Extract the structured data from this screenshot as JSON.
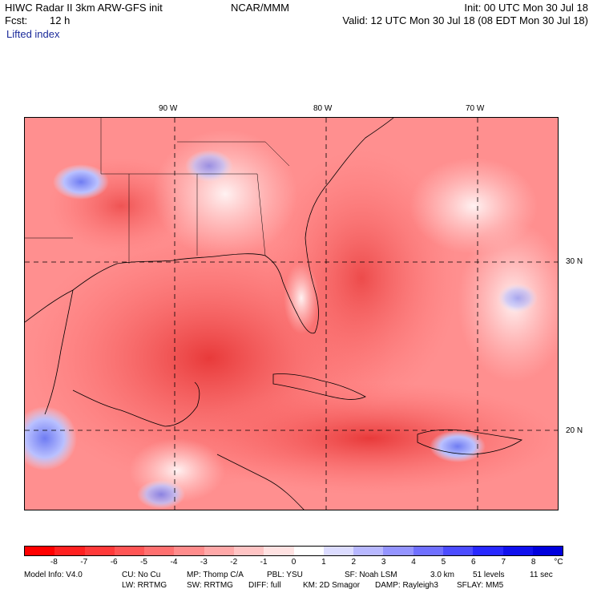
{
  "header": {
    "title": "HIWC Radar II 3km ARW-GFS init",
    "org": "NCAR/MMM",
    "init": "Init: 00 UTC Mon 30 Jul 18",
    "fcst_label": "Fcst:",
    "fcst_value": "12 h",
    "valid": "Valid: 12 UTC Mon 30 Jul 18 (08 EDT Mon 30 Jul 18)",
    "field": "Lifted index"
  },
  "axes": {
    "lon_labels": [
      "90 W",
      "80 W",
      "70 W"
    ],
    "lat_labels": [
      "30 N",
      "20 N"
    ]
  },
  "legend": {
    "unit": "°C",
    "values": [
      "-8",
      "-7",
      "-6",
      "-5",
      "-4",
      "-3",
      "-2",
      "-1",
      "0",
      "1",
      "2",
      "3",
      "4",
      "5",
      "6",
      "7",
      "8"
    ],
    "colors": [
      "#ff0000",
      "#ff2020",
      "#ff3a3a",
      "#ff5555",
      "#ff7070",
      "#ff8c8c",
      "#ffa8a8",
      "#ffc4c4",
      "#ffe2e2",
      "#ffffff",
      "#dcdcff",
      "#b8b8ff",
      "#9494ff",
      "#7070ff",
      "#4c4cff",
      "#2828ff",
      "#1010ee",
      "#0000dd"
    ]
  },
  "footer": {
    "line1": [
      "Model Info: V4.0",
      "CU: No Cu",
      "MP: Thomp C/A",
      "PBL: YSU",
      "SF: Noah LSM",
      "3.0 km",
      "51 levels",
      "11 sec"
    ],
    "line2": [
      "LW: RRTMG",
      "SW: RRTMG",
      "DIFF: full",
      "KM: 2D Smagor",
      "DAMP: Rayleigh3",
      "SFLAY: MM5"
    ]
  }
}
